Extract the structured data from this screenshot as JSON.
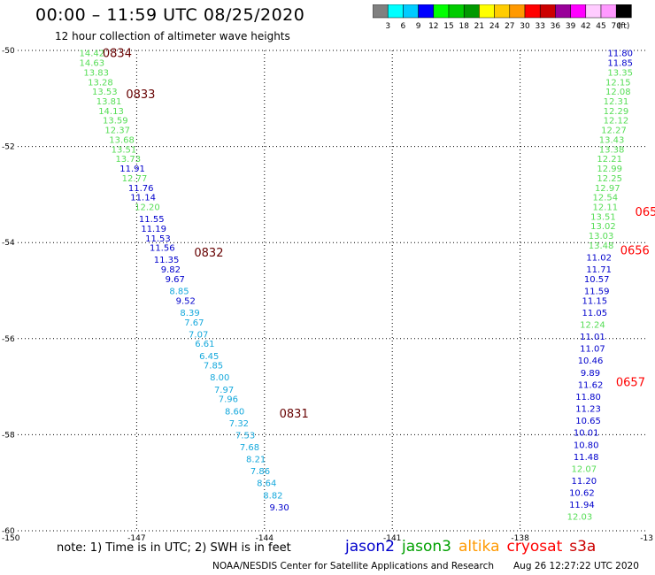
{
  "title": "00:00 – 11:59 UTC 08/25/2020",
  "subtitle": "12 hour collection of altimeter wave heights",
  "note": "note:  1) Time is in UTC;  2) SWH is in feet",
  "credit": "NOAA/NESDIS Center for Satellite Applications and Research",
  "timestamp": "Aug 26 12:27:22 UTC 2020",
  "satellites": [
    {
      "name": "jason2",
      "color": "#0000cc"
    },
    {
      "name": "jason3",
      "color": "#00a000"
    },
    {
      "name": "altika",
      "color": "#ff9900"
    },
    {
      "name": "cryosat",
      "color": "#ff0000"
    },
    {
      "name": "s3a",
      "color": "#cc0000"
    }
  ],
  "legend": {
    "unit": "(ft)",
    "ticks": [
      "3",
      "6",
      "9",
      "12",
      "15",
      "18",
      "21",
      "24",
      "27",
      "30",
      "33",
      "36",
      "39",
      "42",
      "45",
      "70"
    ],
    "colors": [
      "#808080",
      "#00ffff",
      "#00ccff",
      "#0000ff",
      "#00ff00",
      "#00cc00",
      "#009900",
      "#ffff00",
      "#ffcc00",
      "#ff9900",
      "#ff0000",
      "#cc0000",
      "#990099",
      "#ff00ff",
      "#ffccff",
      "#ff99ff",
      "#000000"
    ]
  },
  "chart_data": {
    "type": "scatter",
    "xlim": [
      -150,
      -135
    ],
    "ylim": [
      -60,
      -50
    ],
    "x_ticks": [
      -147,
      -144,
      -141,
      -138
    ],
    "x_tick_labels": [
      "-147",
      "-144",
      "-141",
      "-138"
    ],
    "x_edge_labels": [
      "-150",
      "-13"
    ],
    "y_ticks": [
      -50,
      -52,
      -54,
      -56,
      -58,
      -60
    ],
    "y_tick_labels": [
      "-50",
      "-52",
      "-54",
      "-56",
      "-58",
      "-60"
    ],
    "grid": true,
    "series": [
      {
        "track": "west",
        "points": [
          {
            "lat": -50.05,
            "lon": -148.05,
            "swh": "14.42"
          },
          {
            "lat": -50.25,
            "lon": -148.05,
            "swh": "14.63"
          },
          {
            "lat": -50.45,
            "lon": -147.95,
            "swh": "13.83"
          },
          {
            "lat": -50.65,
            "lon": -147.85,
            "swh": "13.28"
          },
          {
            "lat": -50.85,
            "lon": -147.75,
            "swh": "13.53"
          },
          {
            "lat": -51.05,
            "lon": -147.65,
            "swh": "13.81"
          },
          {
            "lat": -51.25,
            "lon": -147.6,
            "swh": "14.13"
          },
          {
            "lat": -51.45,
            "lon": -147.5,
            "swh": "13.59"
          },
          {
            "lat": -51.65,
            "lon": -147.45,
            "swh": "12.37"
          },
          {
            "lat": -51.85,
            "lon": -147.35,
            "swh": "13.68"
          },
          {
            "lat": -52.05,
            "lon": -147.3,
            "swh": "13.51"
          },
          {
            "lat": -52.25,
            "lon": -147.2,
            "swh": "13.73"
          },
          {
            "lat": -52.45,
            "lon": -147.1,
            "swh": "11.91"
          },
          {
            "lat": -52.65,
            "lon": -147.05,
            "swh": "12.77"
          },
          {
            "lat": -52.85,
            "lon": -146.9,
            "swh": "11.76"
          },
          {
            "lat": -53.05,
            "lon": -146.85,
            "swh": "11.14"
          },
          {
            "lat": -53.25,
            "lon": -146.75,
            "swh": "12.20"
          },
          {
            "lat": -53.5,
            "lon": -146.65,
            "swh": "11.55"
          },
          {
            "lat": -53.7,
            "lon": -146.6,
            "swh": "11.19"
          },
          {
            "lat": -53.9,
            "lon": -146.5,
            "swh": "11.53"
          },
          {
            "lat": -54.1,
            "lon": -146.4,
            "swh": "11.56"
          },
          {
            "lat": -54.35,
            "lon": -146.3,
            "swh": "11.35"
          },
          {
            "lat": -54.55,
            "lon": -146.2,
            "swh": "9.82"
          },
          {
            "lat": -54.75,
            "lon": -146.1,
            "swh": "9.67"
          },
          {
            "lat": -55.0,
            "lon": -146.0,
            "swh": "8.85"
          },
          {
            "lat": -55.2,
            "lon": -145.85,
            "swh": "9.52"
          },
          {
            "lat": -55.45,
            "lon": -145.75,
            "swh": "8.39"
          },
          {
            "lat": -55.65,
            "lon": -145.65,
            "swh": "7.67"
          },
          {
            "lat": -55.9,
            "lon": -145.55,
            "swh": "7.07"
          },
          {
            "lat": -56.1,
            "lon": -145.4,
            "swh": "6.61"
          },
          {
            "lat": -56.35,
            "lon": -145.3,
            "swh": "6.45"
          },
          {
            "lat": -56.55,
            "lon": -145.2,
            "swh": "7.85"
          },
          {
            "lat": -56.8,
            "lon": -145.05,
            "swh": "8.00"
          },
          {
            "lat": -57.05,
            "lon": -144.95,
            "swh": "7.97"
          },
          {
            "lat": -57.25,
            "lon": -144.85,
            "swh": "7.96"
          },
          {
            "lat": -57.5,
            "lon": -144.7,
            "swh": "8.60"
          },
          {
            "lat": -57.75,
            "lon": -144.6,
            "swh": "7.32"
          },
          {
            "lat": -58.0,
            "lon": -144.45,
            "swh": "7.53"
          },
          {
            "lat": -58.25,
            "lon": -144.35,
            "swh": "7.68"
          },
          {
            "lat": -58.5,
            "lon": -144.2,
            "swh": "8.21"
          },
          {
            "lat": -58.75,
            "lon": -144.1,
            "swh": "7.86"
          },
          {
            "lat": -59.0,
            "lon": -143.95,
            "swh": "8.64"
          },
          {
            "lat": -59.25,
            "lon": -143.8,
            "swh": "8.82"
          },
          {
            "lat": -59.5,
            "lon": -143.65,
            "swh": "9.30"
          }
        ],
        "time_labels": [
          {
            "lat": -50.05,
            "lon": -147.8,
            "label": "0834"
          },
          {
            "lat": -50.9,
            "lon": -147.25,
            "label": "0833"
          },
          {
            "lat": -54.2,
            "lon": -145.65,
            "label": "0832"
          },
          {
            "lat": -57.55,
            "lon": -143.65,
            "label": "0831"
          }
        ]
      },
      {
        "track": "east",
        "points": [
          {
            "lat": -50.05,
            "lon": -135.65,
            "swh": "11.80"
          },
          {
            "lat": -50.25,
            "lon": -135.65,
            "swh": "11.85"
          },
          {
            "lat": -50.45,
            "lon": -135.65,
            "swh": "13.35"
          },
          {
            "lat": -50.65,
            "lon": -135.7,
            "swh": "12.15"
          },
          {
            "lat": -50.85,
            "lon": -135.7,
            "swh": "12.08"
          },
          {
            "lat": -51.05,
            "lon": -135.75,
            "swh": "12.31"
          },
          {
            "lat": -51.25,
            "lon": -135.75,
            "swh": "12.29"
          },
          {
            "lat": -51.45,
            "lon": -135.75,
            "swh": "12.12"
          },
          {
            "lat": -51.65,
            "lon": -135.8,
            "swh": "12.27"
          },
          {
            "lat": -51.85,
            "lon": -135.85,
            "swh": "13.43"
          },
          {
            "lat": -52.05,
            "lon": -135.85,
            "swh": "13.38"
          },
          {
            "lat": -52.25,
            "lon": -135.9,
            "swh": "12.21"
          },
          {
            "lat": -52.45,
            "lon": -135.9,
            "swh": "12.99"
          },
          {
            "lat": -52.65,
            "lon": -135.9,
            "swh": "12.25"
          },
          {
            "lat": -52.85,
            "lon": -135.95,
            "swh": "12.97"
          },
          {
            "lat": -53.05,
            "lon": -136.0,
            "swh": "12.54"
          },
          {
            "lat": -53.25,
            "lon": -136.0,
            "swh": "12.11"
          },
          {
            "lat": -53.45,
            "lon": -136.05,
            "swh": "13.51"
          },
          {
            "lat": -53.65,
            "lon": -136.05,
            "swh": "13.02"
          },
          {
            "lat": -53.85,
            "lon": -136.1,
            "swh": "13.03"
          },
          {
            "lat": -54.05,
            "lon": -136.1,
            "swh": "13.48"
          },
          {
            "lat": -54.3,
            "lon": -136.15,
            "swh": "11.02"
          },
          {
            "lat": -54.55,
            "lon": -136.15,
            "swh": "11.71"
          },
          {
            "lat": -54.75,
            "lon": -136.2,
            "swh": "10.57"
          },
          {
            "lat": -55.0,
            "lon": -136.2,
            "swh": "11.59"
          },
          {
            "lat": -55.2,
            "lon": -136.25,
            "swh": "11.15"
          },
          {
            "lat": -55.45,
            "lon": -136.25,
            "swh": "11.05"
          },
          {
            "lat": -55.7,
            "lon": -136.3,
            "swh": "12.24"
          },
          {
            "lat": -55.95,
            "lon": -136.3,
            "swh": "11.01"
          },
          {
            "lat": -56.2,
            "lon": -136.3,
            "swh": "11.07"
          },
          {
            "lat": -56.45,
            "lon": -136.35,
            "swh": "10.46"
          },
          {
            "lat": -56.7,
            "lon": -136.35,
            "swh": "9.89"
          },
          {
            "lat": -56.95,
            "lon": -136.35,
            "swh": "11.62"
          },
          {
            "lat": -57.2,
            "lon": -136.4,
            "swh": "11.80"
          },
          {
            "lat": -57.45,
            "lon": -136.4,
            "swh": "11.23"
          },
          {
            "lat": -57.7,
            "lon": -136.4,
            "swh": "10.65"
          },
          {
            "lat": -57.95,
            "lon": -136.45,
            "swh": "10.01"
          },
          {
            "lat": -58.2,
            "lon": -136.45,
            "swh": "10.80"
          },
          {
            "lat": -58.45,
            "lon": -136.45,
            "swh": "11.48"
          },
          {
            "lat": -58.7,
            "lon": -136.5,
            "swh": "12.07"
          },
          {
            "lat": -58.95,
            "lon": -136.5,
            "swh": "11.20"
          },
          {
            "lat": -59.2,
            "lon": -136.55,
            "swh": "10.62"
          },
          {
            "lat": -59.45,
            "lon": -136.55,
            "swh": "11.94"
          },
          {
            "lat": -59.7,
            "lon": -136.6,
            "swh": "12.03"
          }
        ],
        "time_labels": [
          {
            "lat": -53.35,
            "lon": -135.3,
            "label": "065"
          },
          {
            "lat": -54.15,
            "lon": -135.65,
            "label": "0656"
          },
          {
            "lat": -56.9,
            "lon": -135.75,
            "label": "0657"
          }
        ]
      }
    ]
  }
}
